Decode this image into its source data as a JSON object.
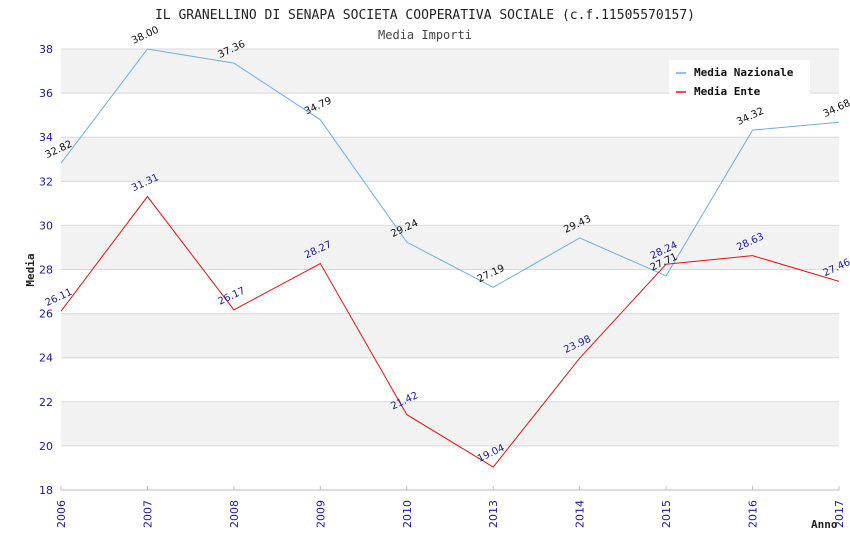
{
  "chart_data": {
    "type": "line",
    "title": "IL GRANELLINO DI SENAPA SOCIETA COOPERATIVA SOCIALE (c.f.11505570157)",
    "subtitle": "Media Importi",
    "xlabel": "Anno",
    "ylabel": "Media",
    "categories": [
      "2006",
      "2007",
      "2008",
      "2009",
      "2010",
      "2013",
      "2014",
      "2015",
      "2016",
      "2017"
    ],
    "ylim": [
      18,
      38
    ],
    "yticks": [
      "18",
      "20",
      "22",
      "24",
      "26",
      "28",
      "30",
      "32",
      "34",
      "36",
      "38"
    ],
    "grid": "horizontal bands",
    "legend_position": "top-right",
    "series": [
      {
        "name": "Media Nazionale",
        "color": "#6aaee8",
        "values": [
          32.82,
          38.0,
          37.36,
          34.79,
          29.24,
          27.19,
          29.43,
          27.71,
          34.32,
          34.68
        ],
        "labels": [
          "32.82",
          "38.00",
          "37.36",
          "34.79",
          "29.24",
          "27.19",
          "29.43",
          "27.71",
          "34.32",
          "34.68"
        ]
      },
      {
        "name": "Media Ente",
        "color": "#e81010",
        "values": [
          26.11,
          31.31,
          26.17,
          28.27,
          21.42,
          19.04,
          23.98,
          28.24,
          28.63,
          27.46
        ],
        "labels": [
          "26.11",
          "31.31",
          "26.17",
          "28.27",
          "21.42",
          "19.04",
          "23.98",
          "28.24",
          "28.63",
          "27.46"
        ]
      }
    ]
  }
}
